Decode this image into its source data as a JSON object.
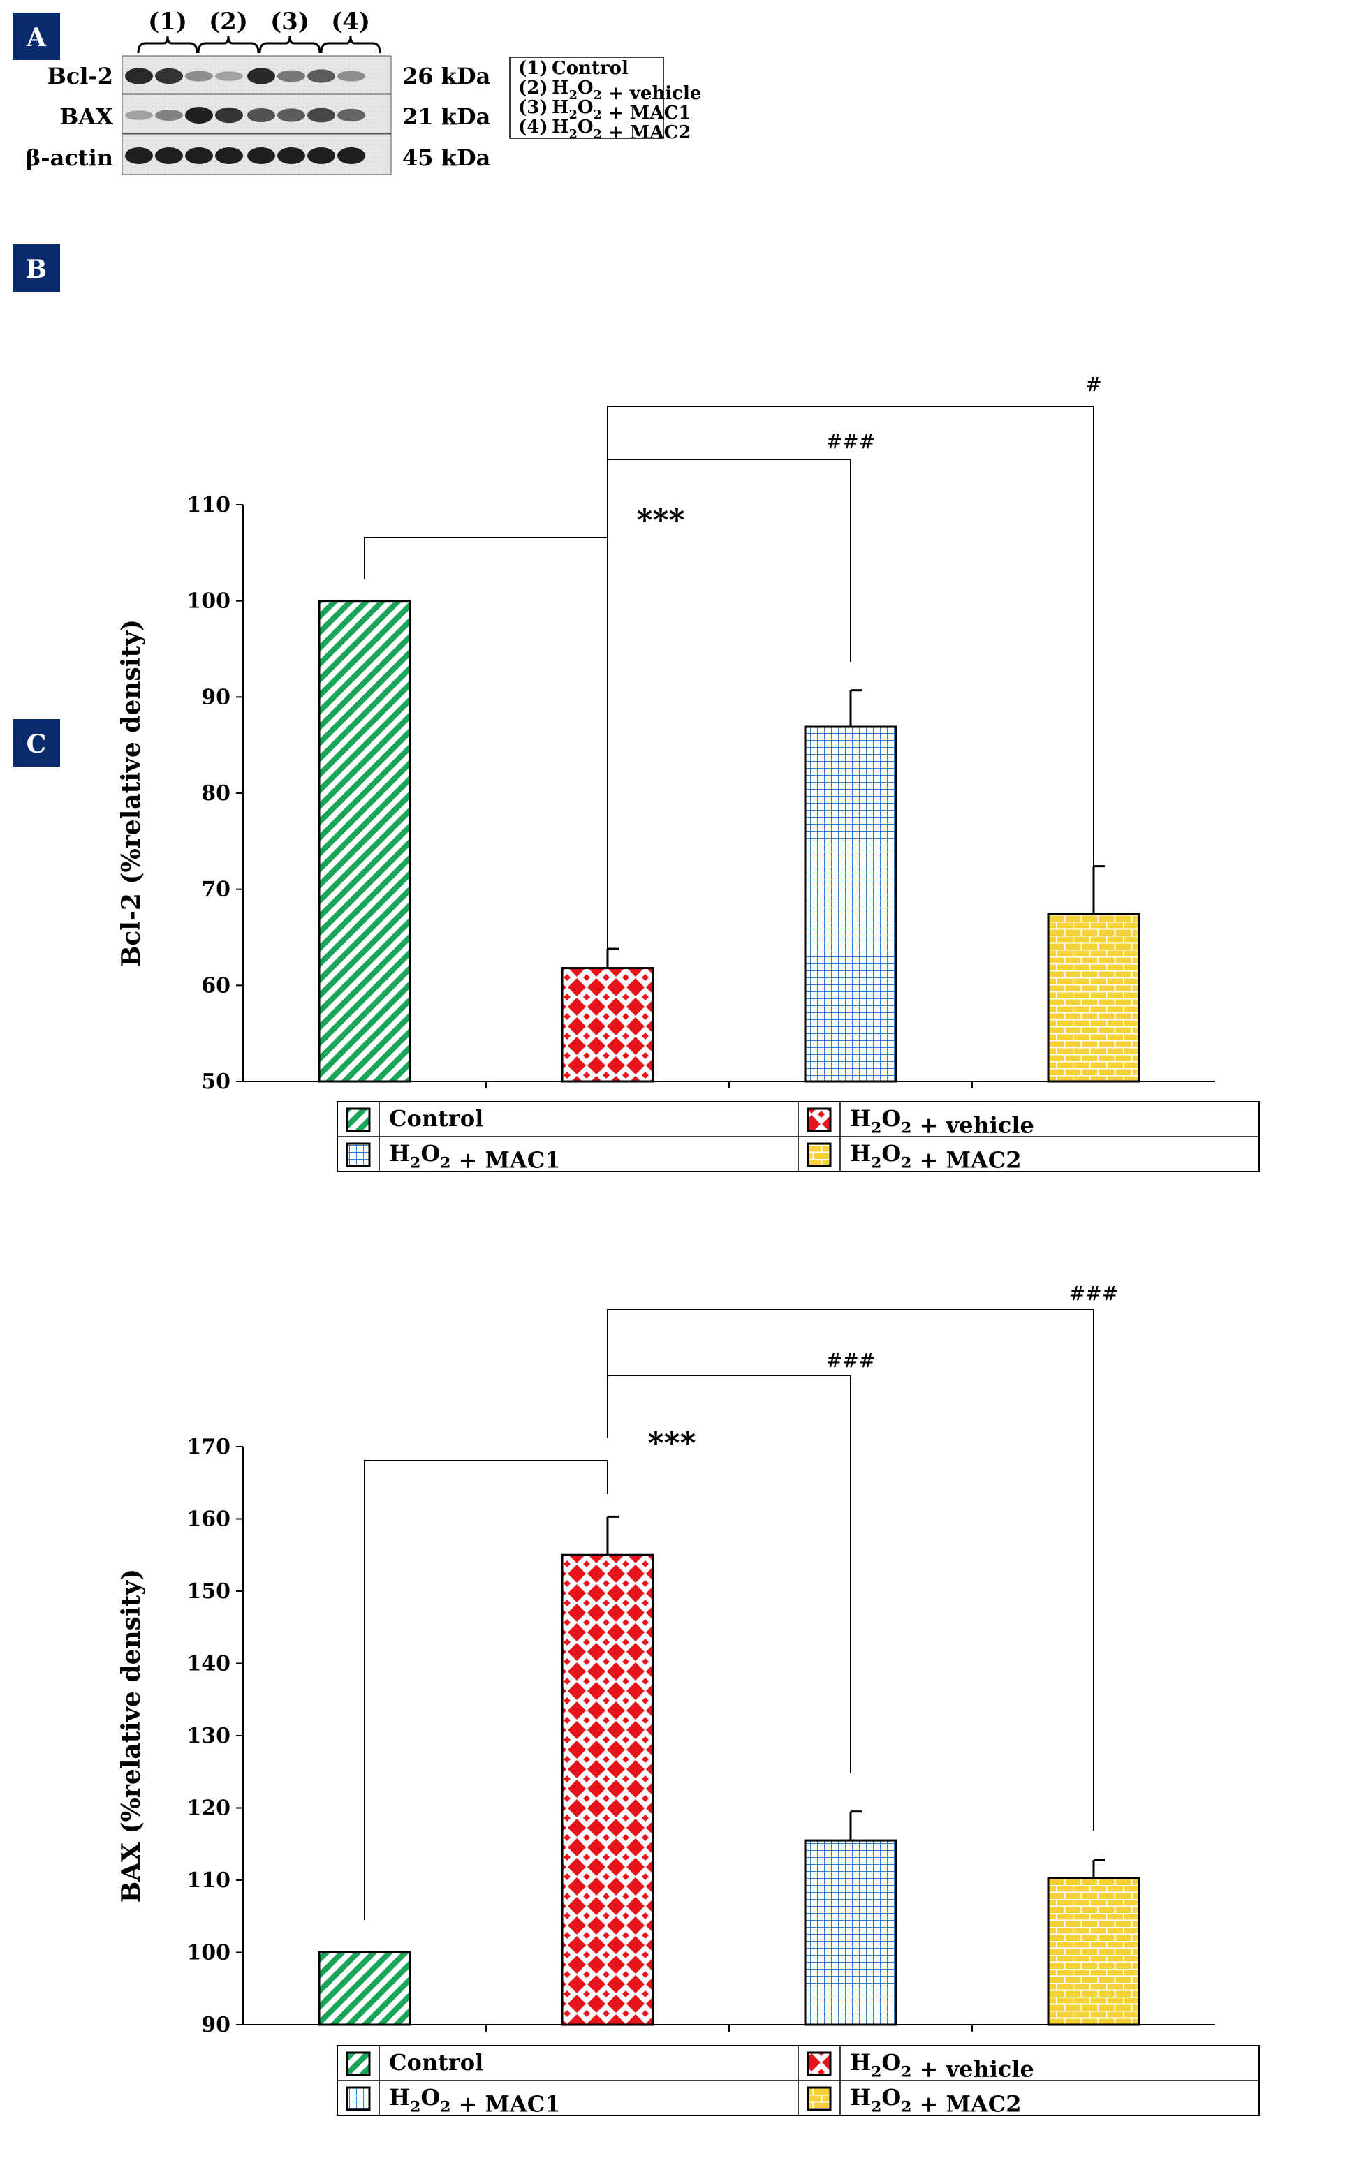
{
  "colors": {
    "panel_badge": "#0a2a6e",
    "control": "#1aa55a",
    "vehicle": "#e8141c",
    "mac1": "#2f7fd0",
    "mac2": "#f2c21a",
    "mac2_line": "#e08a1a"
  },
  "panel_a": {
    "letter": "A",
    "lane_groups": [
      "(1)",
      "(2)",
      "(3)",
      "(4)"
    ],
    "proteins": [
      "Bcl-2",
      "BAX",
      "β-actin"
    ],
    "sizes": [
      "26 kDa",
      "21 kDa",
      "45 kDa"
    ],
    "legend": [
      {
        "num": "(1)",
        "text": "Control"
      },
      {
        "num": "(2)",
        "text": "H2O2 + vehicle"
      },
      {
        "num": "(3)",
        "text": "H2O2 + MAC1"
      },
      {
        "num": "(4)",
        "text": "H2O2 + MAC2"
      }
    ],
    "band_intensity": {
      "Bcl-2": [
        0.95,
        0.9,
        0.45,
        0.35,
        0.95,
        0.55,
        0.7,
        0.45
      ],
      "BAX": [
        0.35,
        0.5,
        1.0,
        0.9,
        0.75,
        0.7,
        0.8,
        0.65
      ],
      "β-actin": [
        1.0,
        1.0,
        1.0,
        1.0,
        1.0,
        1.0,
        1.0,
        1.0
      ]
    }
  },
  "legend_labels": {
    "control": "Control",
    "vehicle": "H2O2 + vehicle",
    "mac1": "H2O2 + MAC1",
    "mac2": "H2O2 + MAC2"
  },
  "chart_data": [
    {
      "panel": "B",
      "type": "bar",
      "title": "",
      "xlabel": "",
      "ylabel": "Bcl-2 (%relative density)",
      "categories": [
        "Control",
        "H2O2 + vehicle",
        "H2O2 + MAC1",
        "H2O2 + MAC2"
      ],
      "values": [
        100,
        61.8,
        86.9,
        67.4
      ],
      "errors": [
        0,
        2.0,
        3.8,
        5.0
      ],
      "ylim": [
        50,
        110
      ],
      "yticks": [
        50,
        60,
        70,
        80,
        90,
        100,
        110
      ],
      "significance": [
        {
          "from": 0,
          "to": 1,
          "label": "***"
        },
        {
          "from": 1,
          "to": 2,
          "label": "###"
        },
        {
          "from": 1,
          "to": 3,
          "label": "#"
        }
      ]
    },
    {
      "panel": "C",
      "type": "bar",
      "title": "",
      "xlabel": "",
      "ylabel": "BAX (%relative density)",
      "categories": [
        "Control",
        "H2O2 + vehicle",
        "H2O2 + MAC1",
        "H2O2 + MAC2"
      ],
      "values": [
        100,
        155,
        115.5,
        110.3
      ],
      "errors": [
        0,
        5.3,
        4.0,
        2.5
      ],
      "ylim": [
        90,
        170
      ],
      "yticks": [
        90,
        100,
        110,
        120,
        130,
        140,
        150,
        160,
        170
      ],
      "significance": [
        {
          "from": 0,
          "to": 1,
          "label": "***"
        },
        {
          "from": 1,
          "to": 2,
          "label": "###"
        },
        {
          "from": 1,
          "to": 3,
          "label": "###"
        }
      ]
    }
  ]
}
